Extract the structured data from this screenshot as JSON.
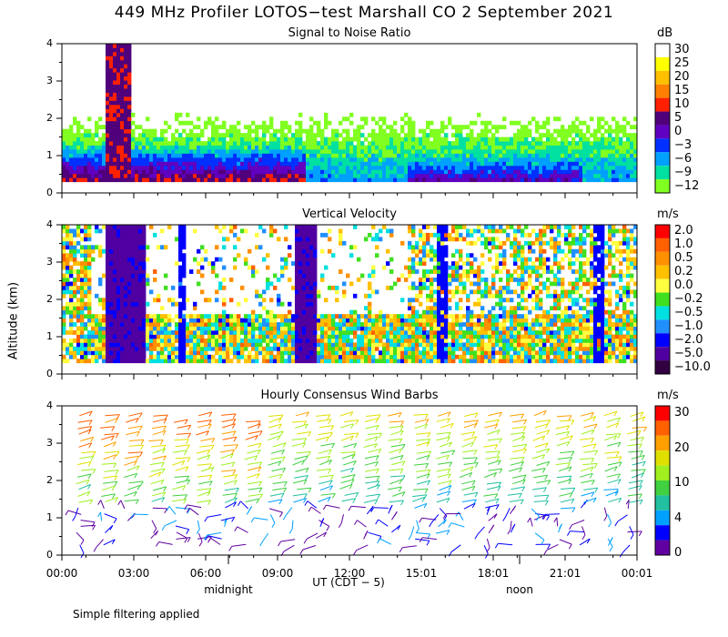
{
  "title": "449 MHz Profiler LOTOS−test Marshall CO  2 September 2021",
  "note": "Simple filtering applied",
  "ylabel": "Altitude (km)",
  "xlabel": "UT  (CDT − 5)",
  "midnight": "midnight",
  "noon": "noon",
  "chart_data": [
    {
      "type": "heatmap",
      "title": "Signal to Noise Ratio",
      "units": "dB",
      "ylim": [
        0,
        4
      ],
      "yticks": [
        "0",
        "1",
        "2",
        "3",
        "4"
      ],
      "xticks": [
        "00:00",
        "03:00",
        "06:00",
        "09:00",
        "12:00",
        "15:01",
        "18:01",
        "21:01",
        "00:01"
      ],
      "colorbar": {
        "labels": [
          "30",
          "25",
          "20",
          "15",
          "10",
          "5",
          "0",
          "−3",
          "−6",
          "−9",
          "−12"
        ],
        "colors": [
          "#ffffff",
          "#ffff00",
          "#ffc000",
          "#ff8000",
          "#ff2000",
          "#50007a",
          "#6000c0",
          "#0030ff",
          "#00a0ff",
          "#00e0a0",
          "#80ff20"
        ]
      }
    },
    {
      "type": "heatmap",
      "title": "Vertical Velocity",
      "units": "m/s",
      "ylim": [
        0,
        4
      ],
      "yticks": [
        "0",
        "1",
        "2",
        "3",
        "4"
      ],
      "colorbar": {
        "labels": [
          "2.0",
          "1.0",
          "0.5",
          "0.2",
          "0.0",
          "−0.2",
          "−0.5",
          "−1.0",
          "−2.0",
          "−5.0",
          "−10.0"
        ],
        "colors": [
          "#ff0000",
          "#ff6000",
          "#ff9000",
          "#ffc000",
          "#ffff40",
          "#40e020",
          "#00e0e0",
          "#2090ff",
          "#0000ff",
          "#5000a0",
          "#300040"
        ]
      }
    },
    {
      "type": "scatter",
      "title": "Hourly Consensus Wind Barbs",
      "units": "m/s",
      "ylim": [
        0,
        4
      ],
      "yticks": [
        "0",
        "1",
        "2",
        "3",
        "4"
      ],
      "colorbar": {
        "labels": [
          "30",
          "20",
          "10",
          "4",
          "0"
        ],
        "colors": [
          "#ff0000",
          "#ff6000",
          "#ffa000",
          "#e0e000",
          "#a0f020",
          "#40d040",
          "#20c0a0",
          "#00a0ff",
          "#0000ff",
          "#6000a0"
        ]
      }
    }
  ]
}
